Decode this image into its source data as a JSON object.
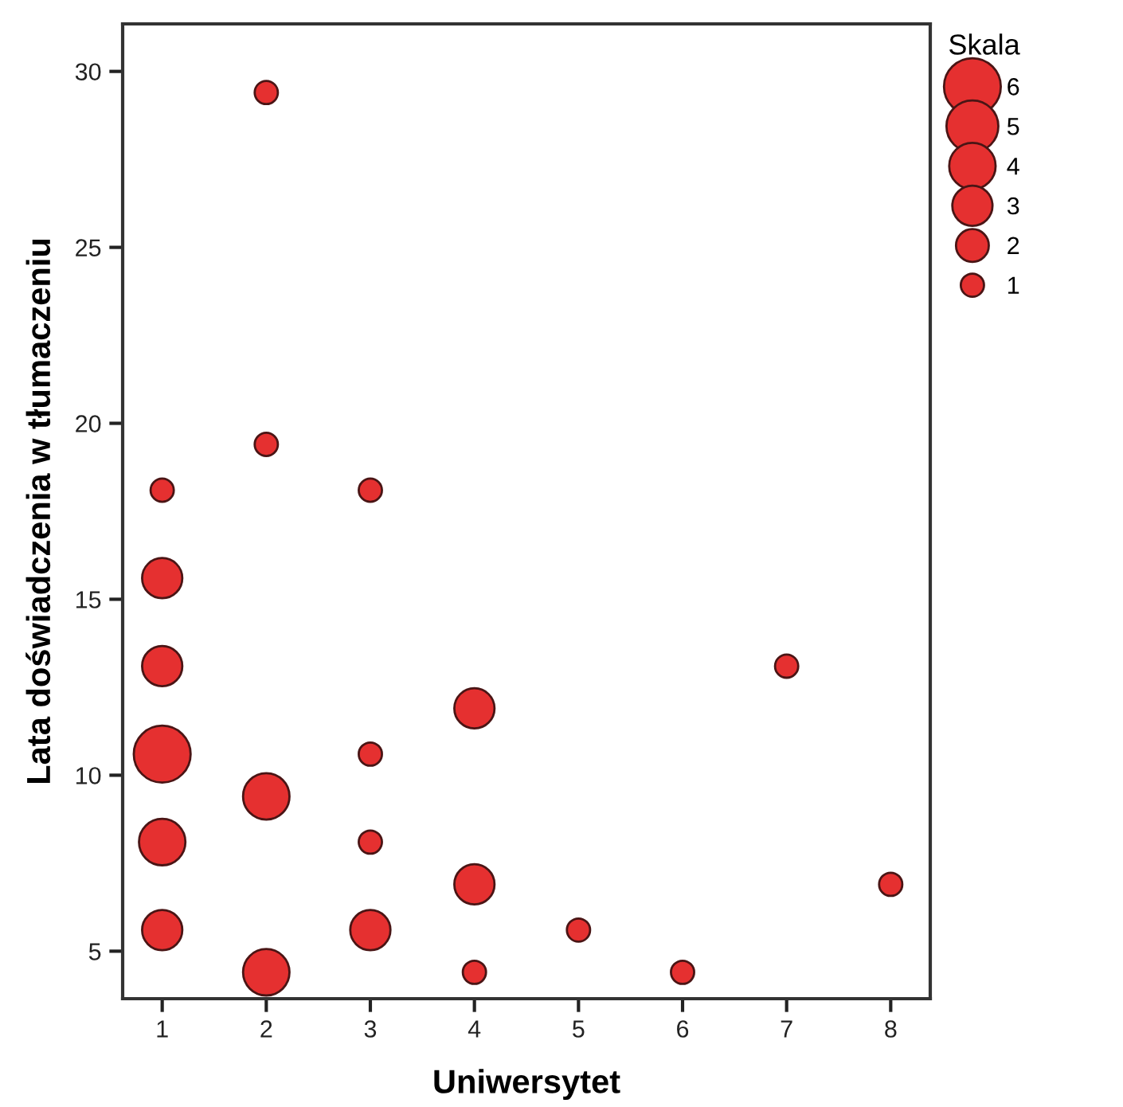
{
  "chart_data": {
    "type": "bubble",
    "xlabel": "Uniwersytet",
    "ylabel": "Lata doświadczenia w tłumaczeniu",
    "legend_title": "Skala",
    "xlim": [
      0.62,
      8.38
    ],
    "xticks": [
      1,
      2,
      3,
      4,
      5,
      6,
      7,
      8
    ],
    "ylim": [
      3.65,
      31.35
    ],
    "yticks": [
      5,
      10,
      15,
      20,
      25,
      30
    ],
    "grid": false,
    "size_legend": [
      6,
      5,
      4,
      3,
      2,
      1
    ],
    "series": [
      {
        "color": "#e53030",
        "x": [
          1,
          1,
          1,
          1,
          1,
          1,
          2,
          2,
          2,
          2,
          3,
          3,
          3,
          3,
          4,
          4,
          4,
          5,
          6,
          7,
          8
        ],
        "values": [
          18.1,
          15.6,
          13.1,
          10.6,
          8.1,
          5.6,
          29.4,
          19.4,
          9.4,
          4.4,
          18.1,
          10.6,
          8.1,
          5.6,
          11.9,
          6.9,
          4.4,
          5.6,
          4.4,
          13.1,
          6.9
        ],
        "sizes": [
          1,
          3,
          3,
          6,
          4,
          3,
          1,
          1,
          4,
          4,
          1,
          1,
          1,
          3,
          3,
          3,
          1,
          1,
          1,
          1,
          1
        ]
      }
    ]
  }
}
